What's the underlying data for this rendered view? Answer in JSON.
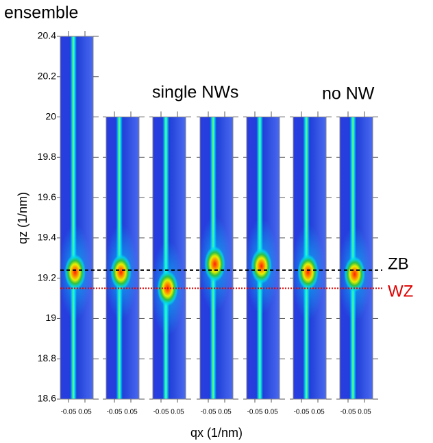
{
  "chart_data": {
    "type": "map-panels",
    "annotations": [
      "ensemble",
      "single NWs",
      "no NW"
    ],
    "x_label": "qx (1/nm)",
    "y_label": "qz (1/nm)",
    "ylim": [
      18.6,
      20.4
    ],
    "yticks": [
      18.6,
      18.8,
      19,
      19.2,
      19.4,
      19.6,
      19.8,
      20,
      20.2,
      20.4
    ],
    "xlim": [
      -0.1,
      0.1
    ],
    "xticks": [
      -0.05,
      0.05
    ],
    "panels": [
      {
        "ylim": [
          18.6,
          20.4
        ],
        "peak_qz": 19.23
      },
      {
        "ylim": [
          18.6,
          20
        ],
        "peak_qz": 19.23
      },
      {
        "ylim": [
          18.6,
          20
        ],
        "peak_qz": 19.15
      },
      {
        "ylim": [
          18.6,
          20
        ],
        "peak_qz": 19.27
      },
      {
        "ylim": [
          18.6,
          20
        ],
        "peak_qz": 19.26
      },
      {
        "ylim": [
          18.6,
          20
        ],
        "peak_qz": 19.23
      },
      {
        "ylim": [
          18.6,
          20
        ],
        "peak_qz": 19.22
      }
    ],
    "reference_lines": [
      {
        "name": "ZB",
        "value": 19.24,
        "color": "#000000",
        "style": "dashed"
      },
      {
        "name": "WZ",
        "value": 19.15,
        "color": "#e00000",
        "style": "dotted"
      }
    ]
  }
}
